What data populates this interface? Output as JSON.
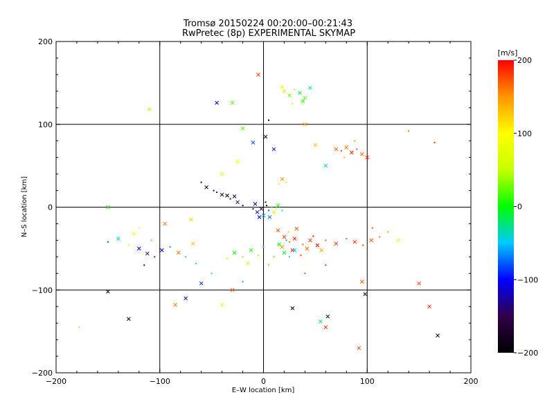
{
  "chart_data": {
    "type": "scatter",
    "title": "Tromsø 20150224 00:20:00–00:21:43",
    "subtitle": "RwPretec (8p) EXPERIMENTAL SKYMAP",
    "xlabel": "E–W location [km]",
    "ylabel": "N–S location [km]",
    "xlim": [
      -200,
      200
    ],
    "ylim": [
      -200,
      200
    ],
    "xticks": [
      "−200",
      "−100",
      "0",
      "100",
      "200"
    ],
    "yticks": [
      "−200",
      "−100",
      "0",
      "100",
      "200"
    ],
    "grid_values": [
      -100,
      0,
      100
    ],
    "colorbar": {
      "label": "[m/s]",
      "range": [
        -200,
        200
      ],
      "ticks": [
        "−200",
        "−100",
        "0",
        "100",
        "200"
      ],
      "tick_values": [
        -200,
        -100,
        0,
        100,
        200
      ],
      "stops": [
        "#000000",
        "#300048",
        "#0000ff",
        "#00c8ff",
        "#00ff00",
        "#c8ff00",
        "#ffff00",
        "#ff9600",
        "#ff0000"
      ]
    },
    "markers": [
      "x",
      "dot"
    ],
    "points": [
      [
        -2,
        -2,
        -150,
        "x"
      ],
      [
        3,
        2,
        -170,
        "dot"
      ],
      [
        -6,
        -6,
        -120,
        "x"
      ],
      [
        5,
        -4,
        -80,
        "dot"
      ],
      [
        0,
        -10,
        -60,
        "x"
      ],
      [
        -8,
        4,
        -140,
        "x"
      ],
      [
        8,
        0,
        -20,
        "dot"
      ],
      [
        10,
        -6,
        60,
        "x"
      ],
      [
        12,
        -2,
        80,
        "dot"
      ],
      [
        -4,
        -12,
        -100,
        "x"
      ],
      [
        2,
        6,
        -180,
        "dot"
      ],
      [
        14,
        2,
        10,
        "x"
      ],
      [
        -10,
        -2,
        -160,
        "dot"
      ],
      [
        18,
        -4,
        -40,
        "dot"
      ],
      [
        6,
        -12,
        -70,
        "x"
      ],
      [
        -60,
        30,
        -190,
        "dot"
      ],
      [
        -55,
        24,
        -170,
        "x"
      ],
      [
        -48,
        20,
        -180,
        "dot"
      ],
      [
        -40,
        15,
        -160,
        "x"
      ],
      [
        -32,
        10,
        -150,
        "dot"
      ],
      [
        -25,
        6,
        -130,
        "x"
      ],
      [
        -20,
        2,
        -180,
        "dot"
      ],
      [
        -35,
        14,
        -200,
        "x"
      ],
      [
        -45,
        18,
        -120,
        "dot"
      ],
      [
        -28,
        13,
        -190,
        "x"
      ],
      [
        14,
        -28,
        170,
        "x"
      ],
      [
        20,
        -36,
        180,
        "x"
      ],
      [
        25,
        -42,
        160,
        "dot"
      ],
      [
        30,
        -38,
        190,
        "x"
      ],
      [
        38,
        -45,
        170,
        "dot"
      ],
      [
        45,
        -40,
        180,
        "x"
      ],
      [
        52,
        -46,
        200,
        "x"
      ],
      [
        60,
        -40,
        175,
        "dot"
      ],
      [
        70,
        -44,
        185,
        "x"
      ],
      [
        80,
        -38,
        170,
        "dot"
      ],
      [
        88,
        -42,
        190,
        "x"
      ],
      [
        96,
        -46,
        180,
        "dot"
      ],
      [
        104,
        -40,
        170,
        "x"
      ],
      [
        112,
        -36,
        160,
        "dot"
      ],
      [
        28,
        -52,
        190,
        "x"
      ],
      [
        36,
        -58,
        175,
        "dot"
      ],
      [
        42,
        -50,
        165,
        "x"
      ],
      [
        18,
        -48,
        150,
        "x"
      ],
      [
        48,
        -35,
        195,
        "dot"
      ],
      [
        56,
        -52,
        140,
        "x"
      ],
      [
        24,
        -30,
        120,
        "dot"
      ],
      [
        32,
        -26,
        170,
        "x"
      ],
      [
        20,
        -55,
        -10,
        "x"
      ],
      [
        10,
        -60,
        20,
        "dot"
      ],
      [
        -5,
        -58,
        40,
        "dot"
      ],
      [
        -12,
        -52,
        10,
        "x"
      ],
      [
        -20,
        -60,
        30,
        "dot"
      ],
      [
        -28,
        -55,
        0,
        "x"
      ],
      [
        -35,
        -62,
        50,
        "dot"
      ],
      [
        0,
        -48,
        -30,
        "dot"
      ],
      [
        15,
        -45,
        5,
        "x"
      ],
      [
        25,
        -60,
        -20,
        "dot"
      ],
      [
        -15,
        -68,
        60,
        "x"
      ],
      [
        5,
        -70,
        25,
        "dot"
      ],
      [
        30,
        -52,
        -50,
        "x"
      ],
      [
        22,
        -40,
        -60,
        "dot"
      ],
      [
        -150,
        -42,
        -80,
        "dot"
      ],
      [
        -140,
        -38,
        -40,
        "x"
      ],
      [
        -130,
        -46,
        60,
        "dot"
      ],
      [
        -120,
        -50,
        -100,
        "x"
      ],
      [
        -112,
        -56,
        -140,
        "x"
      ],
      [
        -105,
        -60,
        -90,
        "dot"
      ],
      [
        -98,
        -52,
        -120,
        "x"
      ],
      [
        -90,
        -48,
        -60,
        "dot"
      ],
      [
        -82,
        -55,
        160,
        "x"
      ],
      [
        -75,
        -60,
        -30,
        "dot"
      ],
      [
        -68,
        -44,
        130,
        "x"
      ],
      [
        -115,
        -70,
        -160,
        "dot"
      ],
      [
        -125,
        -32,
        90,
        "x"
      ],
      [
        -108,
        -40,
        20,
        "dot"
      ],
      [
        70,
        70,
        170,
        "x"
      ],
      [
        75,
        68,
        180,
        "dot"
      ],
      [
        80,
        72,
        160,
        "x"
      ],
      [
        85,
        66,
        190,
        "x"
      ],
      [
        90,
        70,
        175,
        "dot"
      ],
      [
        95,
        64,
        165,
        "x"
      ],
      [
        88,
        80,
        150,
        "dot"
      ],
      [
        100,
        60,
        185,
        "x"
      ],
      [
        78,
        60,
        140,
        "dot"
      ],
      [
        20,
        140,
        60,
        "x"
      ],
      [
        25,
        135,
        30,
        "x"
      ],
      [
        30,
        142,
        40,
        "dot"
      ],
      [
        35,
        138,
        -10,
        "x"
      ],
      [
        40,
        132,
        20,
        "x"
      ],
      [
        45,
        144,
        -40,
        "x"
      ],
      [
        28,
        125,
        50,
        "dot"
      ],
      [
        38,
        128,
        10,
        "x"
      ],
      [
        -45,
        126,
        -100,
        "x"
      ],
      [
        -30,
        126,
        20,
        "x"
      ],
      [
        -110,
        118,
        40,
        "x"
      ],
      [
        -5,
        160,
        180,
        "x"
      ],
      [
        18,
        145,
        80,
        "x"
      ],
      [
        5,
        105,
        -200,
        "dot"
      ],
      [
        -10,
        78,
        -80,
        "x"
      ],
      [
        -25,
        55,
        100,
        "x"
      ],
      [
        -40,
        40,
        70,
        "x"
      ],
      [
        10,
        70,
        -120,
        "x"
      ],
      [
        22,
        30,
        120,
        "dot"
      ],
      [
        18,
        34,
        150,
        "x"
      ],
      [
        15,
        28,
        90,
        "dot"
      ],
      [
        60,
        50,
        -40,
        "x"
      ],
      [
        50,
        75,
        130,
        "x"
      ],
      [
        40,
        100,
        140,
        "x"
      ],
      [
        -20,
        95,
        20,
        "x"
      ],
      [
        2,
        85,
        -180,
        "x"
      ],
      [
        150,
        -92,
        180,
        "x"
      ],
      [
        160,
        -120,
        190,
        "x"
      ],
      [
        95,
        -90,
        170,
        "x"
      ],
      [
        92,
        -170,
        180,
        "x"
      ],
      [
        168,
        -155,
        -200,
        "x"
      ],
      [
        98,
        -105,
        -190,
        "x"
      ],
      [
        -150,
        -102,
        -190,
        "x"
      ],
      [
        -130,
        -135,
        -180,
        "x"
      ],
      [
        -85,
        -118,
        160,
        "x"
      ],
      [
        -40,
        -118,
        60,
        "x"
      ],
      [
        -30,
        -100,
        170,
        "x"
      ],
      [
        55,
        -138,
        -20,
        "x"
      ],
      [
        62,
        -132,
        -200,
        "x"
      ],
      [
        60,
        -145,
        180,
        "x"
      ],
      [
        28,
        -122,
        -200,
        "x"
      ],
      [
        -60,
        -92,
        -90,
        "x"
      ],
      [
        -75,
        -110,
        -120,
        "x"
      ],
      [
        130,
        -40,
        80,
        "x"
      ],
      [
        -150,
        0,
        10,
        "x"
      ],
      [
        -120,
        -25,
        110,
        "dot"
      ],
      [
        140,
        92,
        160,
        "dot"
      ],
      [
        165,
        78,
        190,
        "dot"
      ],
      [
        -178,
        -145,
        120,
        "dot"
      ],
      [
        -65,
        -68,
        -10,
        "dot"
      ],
      [
        -50,
        -80,
        -30,
        "dot"
      ],
      [
        -20,
        -90,
        -60,
        "dot"
      ],
      [
        40,
        -80,
        175,
        "dot"
      ],
      [
        60,
        -70,
        190,
        "dot"
      ],
      [
        105,
        -25,
        175,
        "dot"
      ],
      [
        120,
        -30,
        150,
        "dot"
      ],
      [
        -95,
        -20,
        160,
        "x"
      ],
      [
        -70,
        -15,
        120,
        "x"
      ]
    ]
  }
}
